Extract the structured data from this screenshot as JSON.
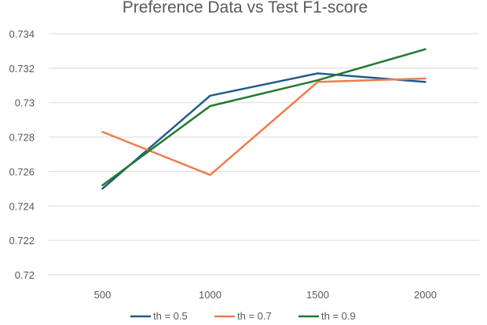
{
  "chart_data": {
    "type": "line",
    "title": "Preference Data vs Test F1-score",
    "xlabel": "",
    "ylabel": "",
    "x": [
      500,
      1000,
      1500,
      2000
    ],
    "x_tick_labels": [
      "500",
      "1000",
      "1500",
      "2000"
    ],
    "ylim": [
      0.72,
      0.734
    ],
    "y_ticks": [
      0.72,
      0.722,
      0.724,
      0.726,
      0.728,
      0.73,
      0.732,
      0.734
    ],
    "y_tick_labels": [
      "0.72",
      "0.722",
      "0.724",
      "0.726",
      "0.728",
      "0.73",
      "0.732",
      "0.734"
    ],
    "grid": true,
    "legend_position": "bottom",
    "series": [
      {
        "name": "th = 0.5",
        "color": "#1f5b8a",
        "values": [
          0.725,
          0.7304,
          0.7317,
          0.7312
        ]
      },
      {
        "name": "th = 0.7",
        "color": "#f07b4c",
        "values": [
          0.7283,
          0.7258,
          0.7312,
          0.7314
        ]
      },
      {
        "name": "th = 0.9",
        "color": "#1f7a2e",
        "values": [
          0.7252,
          0.7298,
          0.7313,
          0.7331
        ]
      }
    ]
  }
}
